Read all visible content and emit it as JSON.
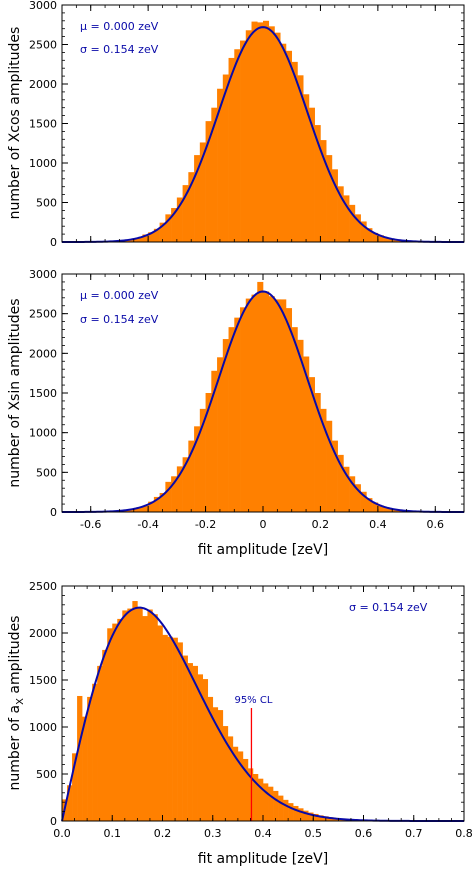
{
  "chart_data": [
    {
      "type": "bar",
      "ylabel": "number of Xcos amplitudes",
      "xlabel": "",
      "xlim": [
        -0.7,
        0.7
      ],
      "ylim": [
        0,
        3000
      ],
      "xticks": [
        -0.6,
        -0.4,
        -0.2,
        0.0,
        0.2,
        0.4,
        0.6
      ],
      "xtick_labels_shown": false,
      "yticks": [
        0,
        500,
        1000,
        1500,
        2000,
        2500,
        3000
      ],
      "fit": {
        "model": "gaussian",
        "mu": 0.0,
        "sigma": 0.154,
        "peak": 2720
      },
      "annotations": [
        "μ = 0.000 zeV",
        "σ = 0.154 zeV"
      ],
      "bin_width": 0.02,
      "bin_centers": [
        -0.49,
        -0.47,
        -0.45,
        -0.43,
        -0.41,
        -0.39,
        -0.37,
        -0.35,
        -0.33,
        -0.31,
        -0.29,
        -0.27,
        -0.25,
        -0.23,
        -0.21,
        -0.19,
        -0.17,
        -0.15,
        -0.13,
        -0.11,
        -0.09,
        -0.07,
        -0.05,
        -0.03,
        -0.01,
        0.01,
        0.03,
        0.05,
        0.07,
        0.09,
        0.11,
        0.13,
        0.15,
        0.17,
        0.19,
        0.21,
        0.23,
        0.25,
        0.27,
        0.29,
        0.31,
        0.33,
        0.35,
        0.37,
        0.39,
        0.41,
        0.43,
        0.45,
        0.47,
        0.49
      ],
      "values": [
        17,
        28,
        36,
        54,
        95,
        123,
        167,
        245,
        350,
        430,
        563,
        720,
        884,
        1100,
        1260,
        1530,
        1700,
        1940,
        2120,
        2330,
        2440,
        2550,
        2680,
        2790,
        2780,
        2800,
        2730,
        2650,
        2510,
        2420,
        2280,
        2110,
        1870,
        1700,
        1480,
        1290,
        1100,
        920,
        705,
        590,
        470,
        350,
        260,
        175,
        115,
        85,
        52,
        33,
        22,
        14
      ],
      "bar_color": "#ff8000",
      "fit_color": "#0a0aa8"
    },
    {
      "type": "bar",
      "ylabel": "number of Xsin amplitudes",
      "xlabel": "fit amplitude [zeV]",
      "xlim": [
        -0.7,
        0.7
      ],
      "ylim": [
        0,
        3000
      ],
      "xticks": [
        -0.6,
        -0.4,
        -0.2,
        0.0,
        0.2,
        0.4,
        0.6
      ],
      "xtick_labels": [
        "-0.6",
        "-0.4",
        "-0.2",
        "0",
        "0.2",
        "0.4",
        "0.6"
      ],
      "yticks": [
        0,
        500,
        1000,
        1500,
        2000,
        2500,
        3000
      ],
      "fit": {
        "model": "gaussian",
        "mu": 0.0,
        "sigma": 0.154,
        "peak": 2780
      },
      "annotations": [
        "μ = 0.000 zeV",
        "σ = 0.154 zeV"
      ],
      "bin_width": 0.02,
      "bin_centers": [
        -0.49,
        -0.47,
        -0.45,
        -0.43,
        -0.41,
        -0.39,
        -0.37,
        -0.35,
        -0.33,
        -0.31,
        -0.29,
        -0.27,
        -0.25,
        -0.23,
        -0.21,
        -0.19,
        -0.17,
        -0.15,
        -0.13,
        -0.11,
        -0.09,
        -0.07,
        -0.05,
        -0.03,
        -0.01,
        0.01,
        0.03,
        0.05,
        0.07,
        0.09,
        0.11,
        0.13,
        0.15,
        0.17,
        0.19,
        0.21,
        0.23,
        0.25,
        0.27,
        0.29,
        0.31,
        0.33,
        0.35,
        0.37,
        0.39,
        0.41,
        0.43,
        0.45,
        0.47,
        0.49
      ],
      "values": [
        15,
        30,
        38,
        62,
        80,
        130,
        190,
        240,
        380,
        450,
        575,
        690,
        900,
        1080,
        1300,
        1500,
        1780,
        1950,
        2180,
        2330,
        2450,
        2580,
        2690,
        2740,
        2900,
        2780,
        2720,
        2680,
        2680,
        2570,
        2330,
        2170,
        1960,
        1700,
        1500,
        1300,
        1150,
        900,
        720,
        570,
        450,
        350,
        255,
        175,
        120,
        82,
        56,
        33,
        20,
        12
      ],
      "bar_color": "#ff8000",
      "fit_color": "#0a0aa8"
    },
    {
      "type": "bar",
      "ylabel": "number of aX amplitudes",
      "ylabel_main": "number of a",
      "ylabel_sub": "X",
      "ylabel_tail": " amplitudes",
      "xlabel": "fit amplitude [zeV]",
      "xlim": [
        0.0,
        0.8
      ],
      "ylim": [
        0,
        2500
      ],
      "xticks": [
        0.0,
        0.1,
        0.2,
        0.3,
        0.4,
        0.5,
        0.6,
        0.7,
        0.8
      ],
      "xtick_labels": [
        "0.0",
        "0.1",
        "0.2",
        "0.3",
        "0.4",
        "0.5",
        "0.6",
        "0.7",
        "0.8"
      ],
      "yticks": [
        0,
        500,
        1000,
        1500,
        2000,
        2500
      ],
      "fit": {
        "model": "rayleigh",
        "sigma": 0.154,
        "peak": 2270
      },
      "annotations": [
        "σ = 0.154 zeV"
      ],
      "cl_label": "95% CL",
      "cl_value": 0.377,
      "bin_width": 0.01,
      "bin_centers": [
        0.005,
        0.015,
        0.025,
        0.035,
        0.045,
        0.055,
        0.065,
        0.075,
        0.085,
        0.095,
        0.105,
        0.115,
        0.125,
        0.135,
        0.145,
        0.155,
        0.165,
        0.175,
        0.185,
        0.195,
        0.205,
        0.215,
        0.225,
        0.235,
        0.245,
        0.255,
        0.265,
        0.275,
        0.285,
        0.295,
        0.305,
        0.315,
        0.325,
        0.335,
        0.345,
        0.355,
        0.365,
        0.375,
        0.385,
        0.395,
        0.405,
        0.415,
        0.425,
        0.435,
        0.445,
        0.455,
        0.465,
        0.475,
        0.485,
        0.495,
        0.505,
        0.515,
        0.525,
        0.535,
        0.545,
        0.555,
        0.565,
        0.575,
        0.585,
        0.595,
        0.605,
        0.615,
        0.625,
        0.635,
        0.645,
        0.655,
        0.665,
        0.675,
        0.685,
        0.695
      ],
      "values": [
        230,
        380,
        720,
        1330,
        1110,
        1320,
        1460,
        1650,
        1820,
        2050,
        2100,
        2150,
        2240,
        2260,
        2340,
        2270,
        2180,
        2250,
        2200,
        2080,
        1980,
        1960,
        1950,
        1900,
        1760,
        1680,
        1650,
        1560,
        1510,
        1320,
        1210,
        1180,
        1010,
        900,
        790,
        740,
        660,
        560,
        500,
        450,
        400,
        365,
        320,
        270,
        225,
        190,
        160,
        135,
        110,
        90,
        75,
        60,
        50,
        40,
        32,
        25,
        20,
        15,
        12,
        10,
        8,
        6,
        5,
        4,
        3,
        2,
        2,
        1,
        1,
        1
      ],
      "bar_color": "#ff8000",
      "fit_color": "#0a0aa8",
      "cl_color": "#ff0000"
    }
  ]
}
